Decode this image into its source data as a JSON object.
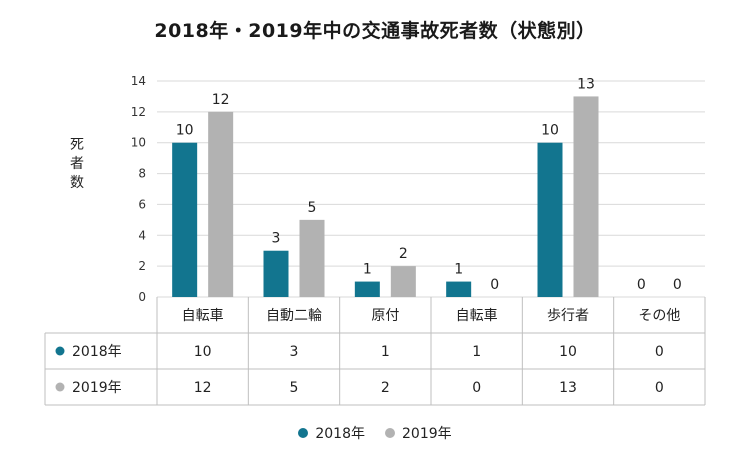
{
  "chart_data": {
    "type": "bar",
    "title": "2018年・2019年中の交通事故死者数（状態別）",
    "ylabel": "死者数",
    "xlabel": "",
    "categories": [
      "自転車",
      "自動二輪",
      "原付",
      "自転車",
      "歩行者",
      "その他"
    ],
    "series": [
      {
        "name": "2018年",
        "values": [
          10,
          3,
          1,
          1,
          10,
          0
        ],
        "color": "#12758f"
      },
      {
        "name": "2019年",
        "values": [
          12,
          5,
          2,
          0,
          13,
          0
        ],
        "color": "#b2b2b2"
      }
    ],
    "ylim": [
      0,
      14
    ],
    "yticks": [
      0,
      2,
      4,
      6,
      8,
      10,
      12,
      14
    ],
    "grid": true,
    "legend_position": "bottom",
    "data_table": true
  }
}
